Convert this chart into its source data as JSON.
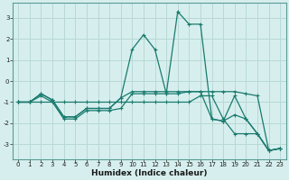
{
  "title": "",
  "xlabel": "Humidex (Indice chaleur)",
  "xlim": [
    -0.5,
    23.5
  ],
  "ylim": [
    -3.7,
    3.7
  ],
  "xticks": [
    0,
    1,
    2,
    3,
    4,
    5,
    6,
    7,
    8,
    9,
    10,
    11,
    12,
    13,
    14,
    15,
    16,
    17,
    18,
    19,
    20,
    21,
    22,
    23
  ],
  "yticks": [
    -3,
    -2,
    -1,
    0,
    1,
    2,
    3
  ],
  "bg_color": "#d6efee",
  "grid_color": "#b8d8d6",
  "line_color": "#1a7a6e",
  "x": [
    0,
    1,
    2,
    3,
    4,
    5,
    6,
    7,
    8,
    9,
    10,
    11,
    12,
    13,
    14,
    15,
    16,
    17,
    18,
    19,
    20,
    21,
    22,
    23
  ],
  "lines": [
    [
      -1.0,
      -1.0,
      -0.6,
      -0.9,
      -1.7,
      -1.7,
      -1.3,
      -1.3,
      -1.3,
      -0.8,
      1.5,
      2.2,
      1.5,
      -0.6,
      3.3,
      2.7,
      2.7,
      -1.8,
      -1.9,
      -0.7,
      -1.8,
      -2.5,
      -3.3,
      -3.2
    ],
    [
      -1.0,
      -1.0,
      -0.6,
      -0.9,
      -1.7,
      -1.7,
      -1.3,
      -1.3,
      -1.3,
      -0.8,
      -0.5,
      -0.5,
      -0.5,
      -0.5,
      -0.5,
      -0.5,
      -0.5,
      -0.5,
      -0.5,
      -0.5,
      -0.6,
      -0.7,
      -3.3,
      -3.2
    ],
    [
      -1.0,
      -1.0,
      -0.7,
      -1.0,
      -1.8,
      -1.8,
      -1.4,
      -1.4,
      -1.4,
      -1.3,
      -0.6,
      -0.6,
      -0.6,
      -0.6,
      -0.6,
      -0.5,
      -0.5,
      -1.8,
      -1.9,
      -1.6,
      -1.8,
      -2.5,
      -3.3,
      -3.2
    ],
    [
      -1.0,
      -1.0,
      -1.0,
      -1.0,
      -1.0,
      -1.0,
      -1.0,
      -1.0,
      -1.0,
      -1.0,
      -1.0,
      -1.0,
      -1.0,
      -1.0,
      -1.0,
      -1.0,
      -0.7,
      -0.7,
      -1.8,
      -2.5,
      -2.5,
      -2.5,
      -3.3,
      -3.2
    ]
  ],
  "tick_fontsize": 5,
  "xlabel_fontsize": 6.5,
  "xlabel_bold": true
}
